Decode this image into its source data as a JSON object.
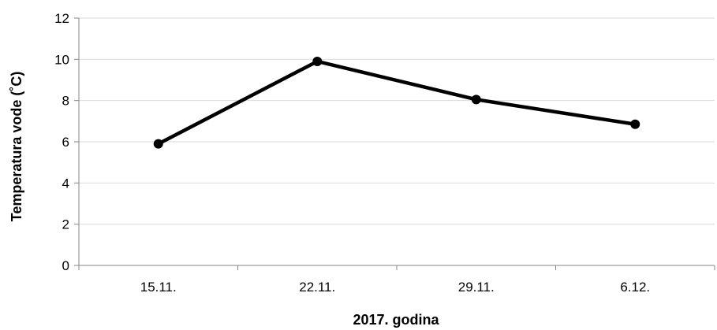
{
  "chart_data": {
    "type": "line",
    "title": "",
    "xlabel": "2017. godina",
    "ylabel": "Temperatura vode (˚C)",
    "categories": [
      "15.11.",
      "22.11.",
      "29.11.",
      "6.12."
    ],
    "series": [
      {
        "values": [
          5.9,
          9.9,
          8.05,
          6.85
        ]
      }
    ],
    "ylim": [
      0,
      12
    ],
    "yticks": [
      0,
      2,
      4,
      6,
      8,
      10,
      12
    ],
    "grid": true,
    "legend": "none",
    "colors": {
      "line": "#000000",
      "grid": "#d9d9d9",
      "axis": "#868686"
    }
  }
}
